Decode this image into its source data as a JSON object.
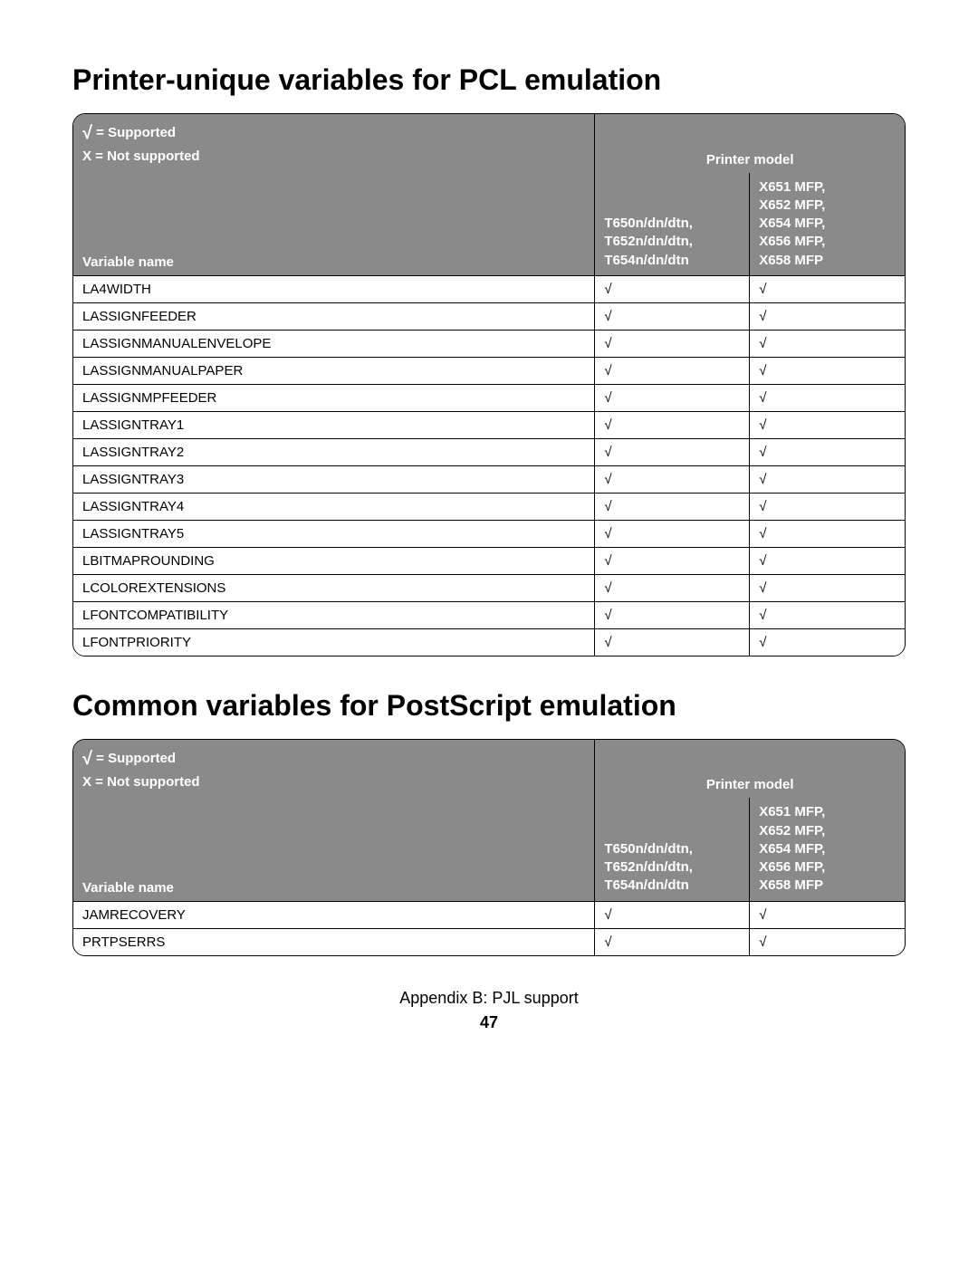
{
  "colors": {
    "header_bg": "#8a8a8a",
    "header_text": "#ffffff",
    "body_text": "#000000",
    "row_bg": "#ffffff",
    "border": "#000000"
  },
  "legend": {
    "supported_symbol": "√",
    "supported_label": "= Supported",
    "not_supported_label": "X = Not supported",
    "printer_model_label": "Printer model"
  },
  "columns": {
    "variable_name": "Variable name",
    "model_a": "T650n/dn/dtn, T652n/dn/dtn, T654n/dn/dtn",
    "model_b": "X651 MFP, X652 MFP, X654 MFP, X656 MFP, X658 MFP"
  },
  "tables": [
    {
      "title": "Printer-unique variables for PCL emulation",
      "rows": [
        {
          "name": "LA4WIDTH",
          "a": "√",
          "b": "√"
        },
        {
          "name": "LASSIGNFEEDER",
          "a": "√",
          "b": "√"
        },
        {
          "name": "LASSIGNMANUALENVELOPE",
          "a": "√",
          "b": "√"
        },
        {
          "name": "LASSIGNMANUALPAPER",
          "a": "√",
          "b": "√"
        },
        {
          "name": "LASSIGNMPFEEDER",
          "a": "√",
          "b": "√"
        },
        {
          "name": "LASSIGNTRAY1",
          "a": "√",
          "b": "√"
        },
        {
          "name": "LASSIGNTRAY2",
          "a": "√",
          "b": "√"
        },
        {
          "name": "LASSIGNTRAY3",
          "a": "√",
          "b": "√"
        },
        {
          "name": "LASSIGNTRAY4",
          "a": "√",
          "b": "√"
        },
        {
          "name": "LASSIGNTRAY5",
          "a": "√",
          "b": "√"
        },
        {
          "name": "LBITMAPROUNDING",
          "a": "√",
          "b": "√"
        },
        {
          "name": "LCOLOREXTENSIONS",
          "a": "√",
          "b": "√"
        },
        {
          "name": "LFONTCOMPATIBILITY",
          "a": "√",
          "b": "√"
        },
        {
          "name": "LFONTPRIORITY",
          "a": "√",
          "b": "√"
        }
      ]
    },
    {
      "title": "Common variables for PostScript emulation",
      "rows": [
        {
          "name": "JAMRECOVERY",
          "a": "√",
          "b": "√"
        },
        {
          "name": "PRTPSERRS",
          "a": "√",
          "b": "√"
        }
      ]
    }
  ],
  "footer": {
    "appendix": "Appendix B: PJL support",
    "page_number": "47"
  }
}
